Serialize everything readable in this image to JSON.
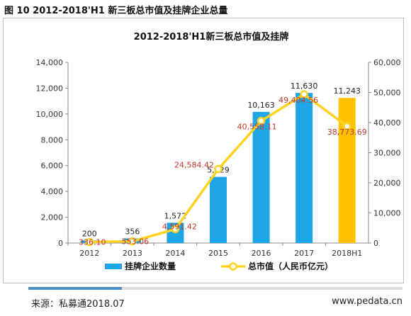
{
  "figure_caption": "图 10 2012-2018'H1 新三板总市值及挂牌企业总量",
  "chart_data": {
    "type": "bar",
    "title": "2012-2018'H1新三板总市值及挂牌",
    "categories": [
      "2012",
      "2013",
      "2014",
      "2015",
      "2016",
      "2017",
      "2018H1"
    ],
    "series": [
      {
        "name": "挂牌企业数量",
        "type": "bar",
        "axis": "left",
        "values": [
          200,
          356,
          1572,
          5129,
          10163,
          11630,
          11243
        ],
        "labels": [
          "200",
          "356",
          "1,572",
          "5,129",
          "10,163",
          "11,630",
          "11,243"
        ],
        "colors": [
          "#1ea6e8",
          "#1ea6e8",
          "#1ea6e8",
          "#1ea6e8",
          "#1ea6e8",
          "#1ea6e8",
          "#ffc000"
        ]
      },
      {
        "name": "总市值（人民币亿元）",
        "type": "line",
        "axis": "right",
        "values": [
          336.1,
          553.06,
          4591.42,
          24584.42,
          40558.11,
          49404.56,
          38773.69
        ],
        "labels": [
          "336.10",
          "553.06",
          "4,591.42",
          "24,584.42",
          "40,558.11",
          "49,404.56",
          "38,773.69"
        ],
        "color": "#ffd21f"
      }
    ],
    "left_axis": {
      "min": 0,
      "max": 14000,
      "step": 2000,
      "ticks": [
        "0",
        "2,000",
        "4,000",
        "6,000",
        "8,000",
        "10,000",
        "12,000",
        "14,000"
      ]
    },
    "right_axis": {
      "min": 0,
      "max": 60000,
      "step": 10000,
      "ticks": [
        "0",
        "10,000",
        "20,000",
        "30,000",
        "40,000",
        "50,000",
        "60,000"
      ]
    },
    "grid": false,
    "legend_position": "bottom",
    "line_label_color": "#c0392b"
  },
  "footer": {
    "source": "来源：私募通2018.07",
    "site": "www.pedata.cn"
  }
}
